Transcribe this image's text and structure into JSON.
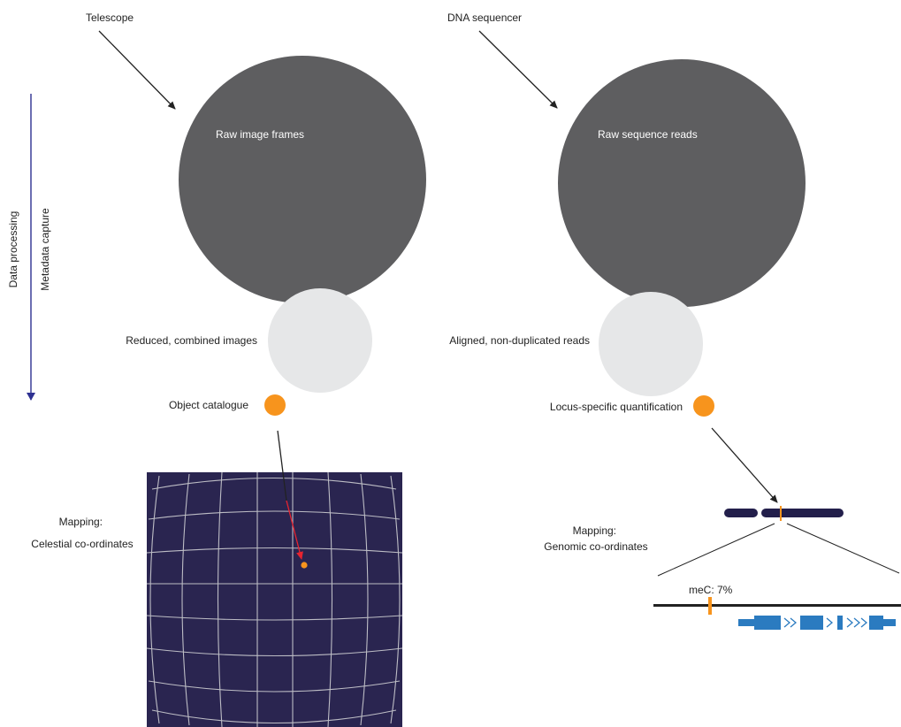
{
  "colors": {
    "raw_circle": "#5e5e60",
    "processed_circle": "#e6e7e8",
    "catalogue_dot": "#f7941d",
    "sky_background": "#2a2550",
    "grid_lines": "#bdbdc5",
    "highlight_arrow": "#e8232f",
    "timeline_arrow": "#2e3192",
    "chromosome": "#231f4b",
    "gene_features": "#2b7bc0",
    "methylation_mark": "#f7941d"
  },
  "side_labels": {
    "data_processing": "Data processing",
    "metadata_capture": "Metadata capture"
  },
  "astronomy": {
    "source": "Telescope",
    "raw": "Raw image frames",
    "processed": "Reduced, combined images",
    "catalogue": "Object catalogue",
    "mapping_line1": "Mapping:",
    "mapping_line2": "Celestial co-ordinates"
  },
  "genomics": {
    "source": "DNA sequencer",
    "raw": "Raw sequence reads",
    "processed": "Aligned, non-duplicated reads",
    "catalogue": "Locus-specific quantification",
    "mapping_line1": "Mapping:",
    "mapping_line2": "Genomic co-ordinates",
    "methylation_label": "meC: 7%"
  }
}
